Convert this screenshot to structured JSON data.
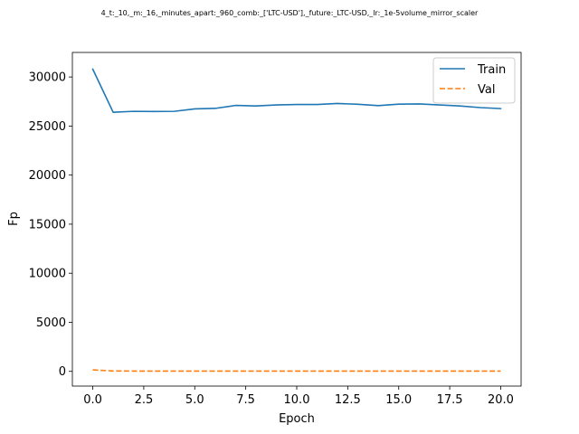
{
  "chart_data": {
    "type": "line",
    "title": "4_t:_10,_m:_16,_minutes_apart:_960_comb:_['LTC-USD'],_future:_LTC-USD,_lr:_1e-5volume_mirror_scaler",
    "xlabel": "Epoch",
    "ylabel": "Fp",
    "xlim": [
      -1.0,
      21.0
    ],
    "ylim": [
      -1500,
      32500
    ],
    "xticks": [
      0.0,
      2.5,
      5.0,
      7.5,
      10.0,
      12.5,
      15.0,
      17.5,
      20.0
    ],
    "xtick_labels": [
      "0.0",
      "2.5",
      "5.0",
      "7.5",
      "10.0",
      "12.5",
      "15.0",
      "17.5",
      "20.0"
    ],
    "yticks": [
      0,
      5000,
      10000,
      15000,
      20000,
      25000,
      30000
    ],
    "ytick_labels": [
      "0",
      "5000",
      "10000",
      "15000",
      "20000",
      "25000",
      "30000"
    ],
    "grid": false,
    "legend_position": "top-right",
    "x": [
      0,
      1,
      2,
      3,
      4,
      5,
      6,
      7,
      8,
      9,
      10,
      11,
      12,
      13,
      14,
      15,
      16,
      17,
      18,
      19,
      20
    ],
    "series": [
      {
        "name": "Train",
        "color": "#1f77b4",
        "style": "solid",
        "values": [
          30800,
          26400,
          26500,
          26480,
          26500,
          26750,
          26800,
          27100,
          27050,
          27150,
          27200,
          27200,
          27300,
          27220,
          27080,
          27230,
          27250,
          27150,
          27050,
          26880,
          26780
        ]
      },
      {
        "name": "Val",
        "color": "#ff7f0e",
        "style": "dashed",
        "values": [
          150,
          40,
          30,
          25,
          25,
          25,
          25,
          25,
          25,
          25,
          25,
          25,
          25,
          25,
          25,
          25,
          25,
          25,
          25,
          25,
          25
        ]
      }
    ]
  }
}
